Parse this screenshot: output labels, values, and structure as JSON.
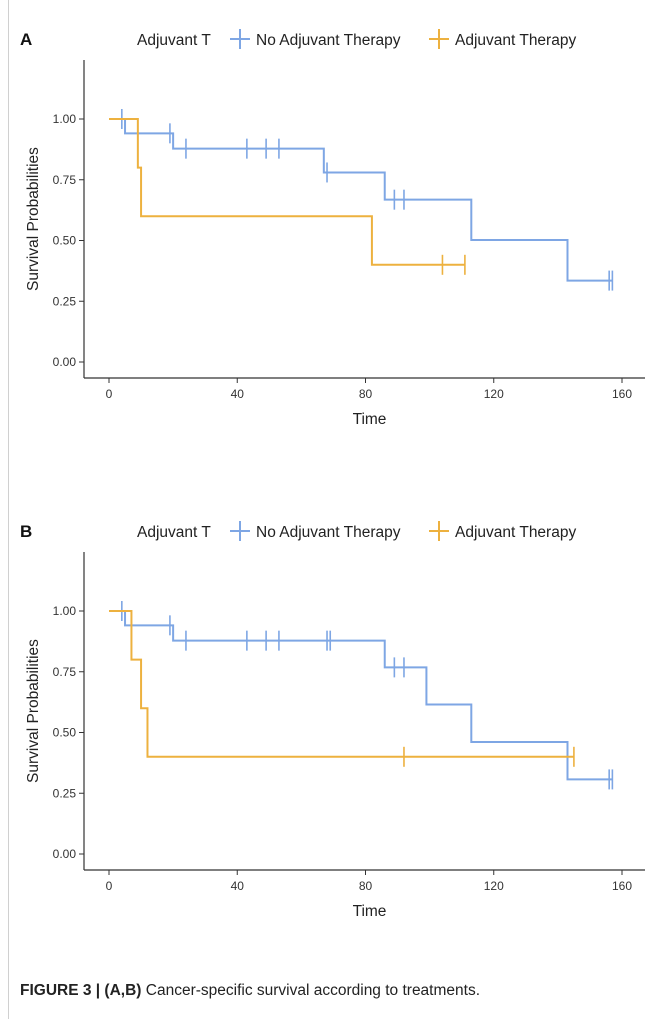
{
  "legend_title": "Adjuvant T",
  "colors": {
    "no_adjuvant": "#7ea6e4",
    "adjuvant": "#edb13f"
  },
  "caption": {
    "figure_label": "FIGURE 3 | (A,B)",
    "text": " Cancer-specific survival according to treatments."
  },
  "chart_data": [
    {
      "type": "line",
      "panel_label": "A",
      "step": true,
      "xlabel": "Time",
      "ylabel": "Survival Probabilities",
      "xlim": [
        0,
        165
      ],
      "ylim": [
        0,
        1.05
      ],
      "xticks": [
        0,
        40,
        80,
        120,
        160
      ],
      "yticks": [
        0.0,
        0.25,
        0.5,
        0.75,
        1.0
      ],
      "ytick_labels": [
        "0.00",
        "0.25",
        "0.50",
        "0.75",
        "1.00"
      ],
      "grid": false,
      "legend_position": "top",
      "series": [
        {
          "name": "No Adjuvant Therapy",
          "color_key": "no_adjuvant",
          "steps": [
            [
              0,
              1.0
            ],
            [
              5,
              0.941
            ],
            [
              20,
              0.878
            ],
            [
              67,
              0.78
            ],
            [
              86,
              0.668
            ],
            [
              113,
              0.502
            ],
            [
              143,
              0.335
            ],
            [
              157,
              0.335
            ]
          ],
          "censored": [
            [
              4,
              1.0
            ],
            [
              19,
              0.941
            ],
            [
              24,
              0.878
            ],
            [
              43,
              0.878
            ],
            [
              49,
              0.878
            ],
            [
              53,
              0.878
            ],
            [
              68,
              0.78
            ],
            [
              89,
              0.668
            ],
            [
              92,
              0.668
            ],
            [
              156,
              0.335
            ],
            [
              157,
              0.335
            ]
          ]
        },
        {
          "name": "Adjuvant Therapy",
          "color_key": "adjuvant",
          "steps": [
            [
              0,
              1.0
            ],
            [
              9,
              0.8
            ],
            [
              10,
              0.6
            ],
            [
              82,
              0.4
            ],
            [
              111,
              0.4
            ]
          ],
          "censored": [
            [
              104,
              0.4
            ],
            [
              111,
              0.4
            ]
          ]
        }
      ]
    },
    {
      "type": "line",
      "panel_label": "B",
      "step": true,
      "xlabel": "Time",
      "ylabel": "Survival Probabilities",
      "xlim": [
        0,
        165
      ],
      "ylim": [
        0,
        1.05
      ],
      "xticks": [
        0,
        40,
        80,
        120,
        160
      ],
      "yticks": [
        0.0,
        0.25,
        0.5,
        0.75,
        1.0
      ],
      "ytick_labels": [
        "0.00",
        "0.25",
        "0.50",
        "0.75",
        "1.00"
      ],
      "grid": false,
      "legend_position": "top",
      "series": [
        {
          "name": "No Adjuvant Therapy",
          "color_key": "no_adjuvant",
          "steps": [
            [
              0,
              1.0
            ],
            [
              5,
              0.941
            ],
            [
              20,
              0.878
            ],
            [
              86,
              0.768
            ],
            [
              99,
              0.615
            ],
            [
              113,
              0.461
            ],
            [
              143,
              0.307
            ],
            [
              157,
              0.307
            ]
          ],
          "censored": [
            [
              4,
              1.0
            ],
            [
              19,
              0.941
            ],
            [
              24,
              0.878
            ],
            [
              43,
              0.878
            ],
            [
              49,
              0.878
            ],
            [
              53,
              0.878
            ],
            [
              68,
              0.878
            ],
            [
              69,
              0.878
            ],
            [
              89,
              0.768
            ],
            [
              92,
              0.768
            ],
            [
              156,
              0.307
            ],
            [
              157,
              0.307
            ]
          ]
        },
        {
          "name": "Adjuvant Therapy",
          "color_key": "adjuvant",
          "steps": [
            [
              0,
              1.0
            ],
            [
              7,
              0.8
            ],
            [
              10,
              0.6
            ],
            [
              12,
              0.4
            ],
            [
              145,
              0.4
            ]
          ],
          "censored": [
            [
              92,
              0.4
            ],
            [
              145,
              0.4
            ]
          ]
        }
      ]
    }
  ]
}
